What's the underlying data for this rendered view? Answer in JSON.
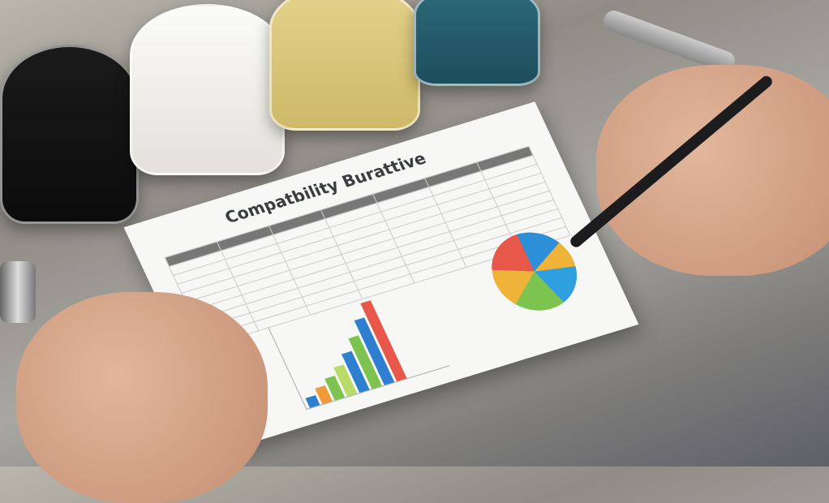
{
  "document": {
    "title": "Compatbility Burattive",
    "table_rows": 10,
    "chart": {
      "bar_colors": [
        "#2f7fd0",
        "#f09a3a",
        "#7cc34f",
        "#b8db6a",
        "#2f7fd0",
        "#7cc34f",
        "#2f7fd0",
        "#e8584a"
      ],
      "bar_levels": [
        10,
        16,
        22,
        30,
        40,
        52,
        66,
        80
      ]
    },
    "pie_colors": [
      "#e8584a",
      "#2d8fd8",
      "#f0b33a",
      "#7cc34f",
      "#2f9fe0"
    ]
  }
}
